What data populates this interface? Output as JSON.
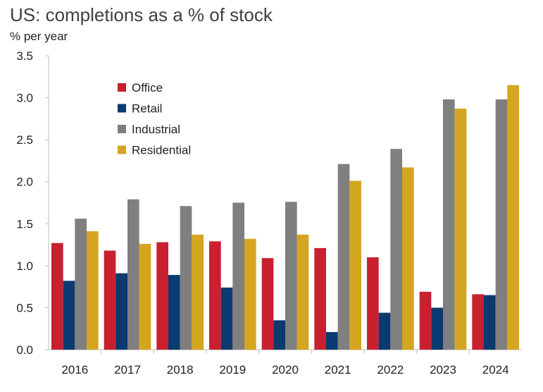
{
  "chart_data": {
    "type": "bar",
    "title": "US: completions as a % of stock",
    "ylabel": "% per year",
    "xlabel": "",
    "ylim": [
      0,
      3.5
    ],
    "yticks": [
      "0.0",
      "0.5",
      "1.0",
      "1.5",
      "2.0",
      "2.5",
      "3.0",
      "3.5"
    ],
    "categories": [
      "2016",
      "2017",
      "2018",
      "2019",
      "2020",
      "2021",
      "2022",
      "2023",
      "2024"
    ],
    "legend_position": "top-left",
    "series": [
      {
        "name": "Office",
        "color": "#c8202f",
        "values": [
          1.27,
          1.18,
          1.28,
          1.29,
          1.09,
          1.21,
          1.1,
          0.69,
          0.66
        ]
      },
      {
        "name": "Retail",
        "color": "#0b3a6e",
        "values": [
          0.82,
          0.91,
          0.89,
          0.74,
          0.35,
          0.21,
          0.44,
          0.5,
          0.65
        ]
      },
      {
        "name": "Industrial",
        "color": "#7f7f7f",
        "values": [
          1.56,
          1.79,
          1.71,
          1.75,
          1.76,
          2.21,
          2.39,
          2.98,
          2.98
        ]
      },
      {
        "name": "Residential",
        "color": "#d4a520",
        "values": [
          1.41,
          1.26,
          1.37,
          1.32,
          1.37,
          2.01,
          2.17,
          2.87,
          3.15
        ]
      }
    ]
  }
}
